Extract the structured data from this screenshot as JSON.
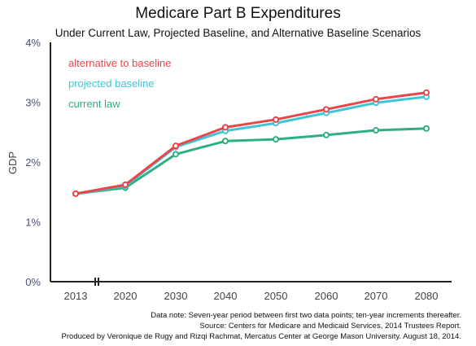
{
  "chart_data": {
    "type": "line",
    "title": "Medicare Part B Expenditures",
    "subtitle": "Under Current Law, Projected Baseline, and Alternative Baseline Scenarios",
    "ylabel": "GDP",
    "xlabel": "",
    "categories": [
      "2013",
      "2020",
      "2030",
      "2040",
      "2050",
      "2060",
      "2070",
      "2080"
    ],
    "yticks": [
      "0%",
      "1%",
      "2%",
      "3%",
      "4%"
    ],
    "ylim": [
      0,
      4
    ],
    "grid": false,
    "legend_position": "top-left",
    "series": [
      {
        "name": "alternative to baseline",
        "color": "#e8464b",
        "values": [
          1.47,
          1.62,
          2.27,
          2.58,
          2.71,
          2.88,
          3.05,
          3.16
        ]
      },
      {
        "name": "projected baseline",
        "color": "#3ec5d8",
        "values": [
          1.47,
          1.6,
          2.25,
          2.52,
          2.65,
          2.82,
          2.99,
          3.09
        ]
      },
      {
        "name": "current law",
        "color": "#2eb07e",
        "values": [
          1.47,
          1.57,
          2.13,
          2.35,
          2.38,
          2.45,
          2.53,
          2.56
        ]
      }
    ]
  },
  "notes": [
    "Data note: Seven-year period between first two data points; ten-year increments thereafter.",
    "Source: Centers for Medicare and Medicaid Services, 2014 Trustees Report.",
    "Produced by Veronique de Rugy and Rizqi Rachmat, Mercatus Center at George Mason University. August 18, 2014."
  ]
}
